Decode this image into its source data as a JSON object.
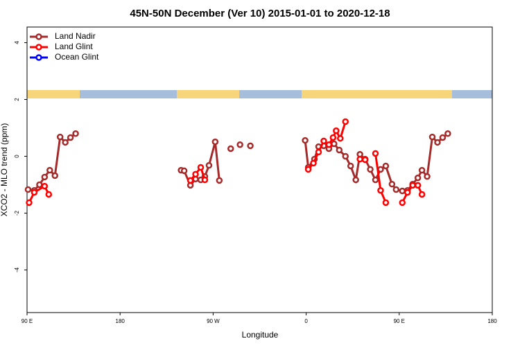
{
  "chart_data": {
    "type": "line",
    "title": "45N-50N December (Ver 10)   2015-01-01 to 2020-12-18",
    "xlabel": "Longitude",
    "ylabel": "XCO2 - MLO trend (ppm)",
    "xlim": [
      90,
      540
    ],
    "ylim": [
      -5.5,
      4.55
    ],
    "xticks": [
      {
        "value": 90,
        "label": "90 E"
      },
      180,
      {
        "value": 270,
        "label": "90 W"
      },
      {
        "value": 360,
        "label": "0"
      },
      {
        "value": 450,
        "label": "90 E"
      },
      {
        "value": 540,
        "label": "180"
      }
    ],
    "yticks": [
      -4,
      -2,
      0,
      2,
      4
    ],
    "legend": "top-left",
    "series": [
      {
        "name": "Land Nadir",
        "color": "#a52a2a",
        "x": [
          91,
          97,
          102,
          107,
          112,
          117,
          122,
          127,
          132,
          137,
          null,
          239,
          242,
          248,
          253,
          258,
          262,
          266,
          272,
          276,
          null,
          287,
          null,
          296,
          null,
          306,
          null,
          359,
          362,
          368,
          372,
          377,
          382,
          387,
          392,
          398,
          403,
          408,
          412,
          417,
          422,
          427,
          432,
          437,
          443,
          447,
          453,
          458,
          463,
          468,
          472,
          477,
          482,
          487,
          492,
          497
        ],
        "values": [
          -1.17,
          -1.2,
          -1.0,
          -0.73,
          -0.49,
          -0.68,
          0.68,
          0.49,
          0.66,
          0.8,
          null,
          -0.49,
          -0.51,
          -1.02,
          -0.8,
          -0.83,
          -0.71,
          -0.32,
          0.51,
          -0.85,
          null,
          0.27,
          null,
          0.41,
          null,
          0.37,
          null,
          0.56,
          -0.39,
          -0.1,
          0.34,
          0.37,
          0.27,
          0.44,
          0.22,
          0,
          -0.34,
          -0.83,
          0.07,
          -0.1,
          -0.46,
          -0.83,
          -0.46,
          -0.34,
          -0.98,
          -1.17,
          -1.22,
          -1.2,
          -0.98,
          -0.76,
          -0.49,
          -0.71,
          0.68,
          0.49,
          0.66,
          0.8
        ]
      },
      {
        "name": "Land Glint",
        "color": "#ff0000",
        "x": [
          92,
          97,
          107,
          111,
          null,
          248,
          253,
          258,
          262,
          null,
          362,
          367,
          372,
          377,
          382,
          386,
          389,
          393,
          398,
          null,
          412,
          417,
          null,
          427,
          432,
          437,
          null,
          453,
          458,
          463,
          468,
          472
        ],
        "values": [
          -1.63,
          -1.27,
          -1.05,
          -1.34,
          null,
          -0.85,
          -0.63,
          -0.39,
          -0.83,
          null,
          -0.46,
          -0.24,
          0.15,
          0.54,
          0.41,
          0.66,
          0.9,
          0.63,
          1.22,
          null,
          -0.1,
          -0.12,
          null,
          0.1,
          -1.2,
          -1.63,
          null,
          -1.63,
          -1.27,
          -1.02,
          -1.02,
          -1.34
        ]
      },
      {
        "name": "Ocean Glint",
        "color": "#0000ff",
        "x": [],
        "values": []
      }
    ]
  }
}
